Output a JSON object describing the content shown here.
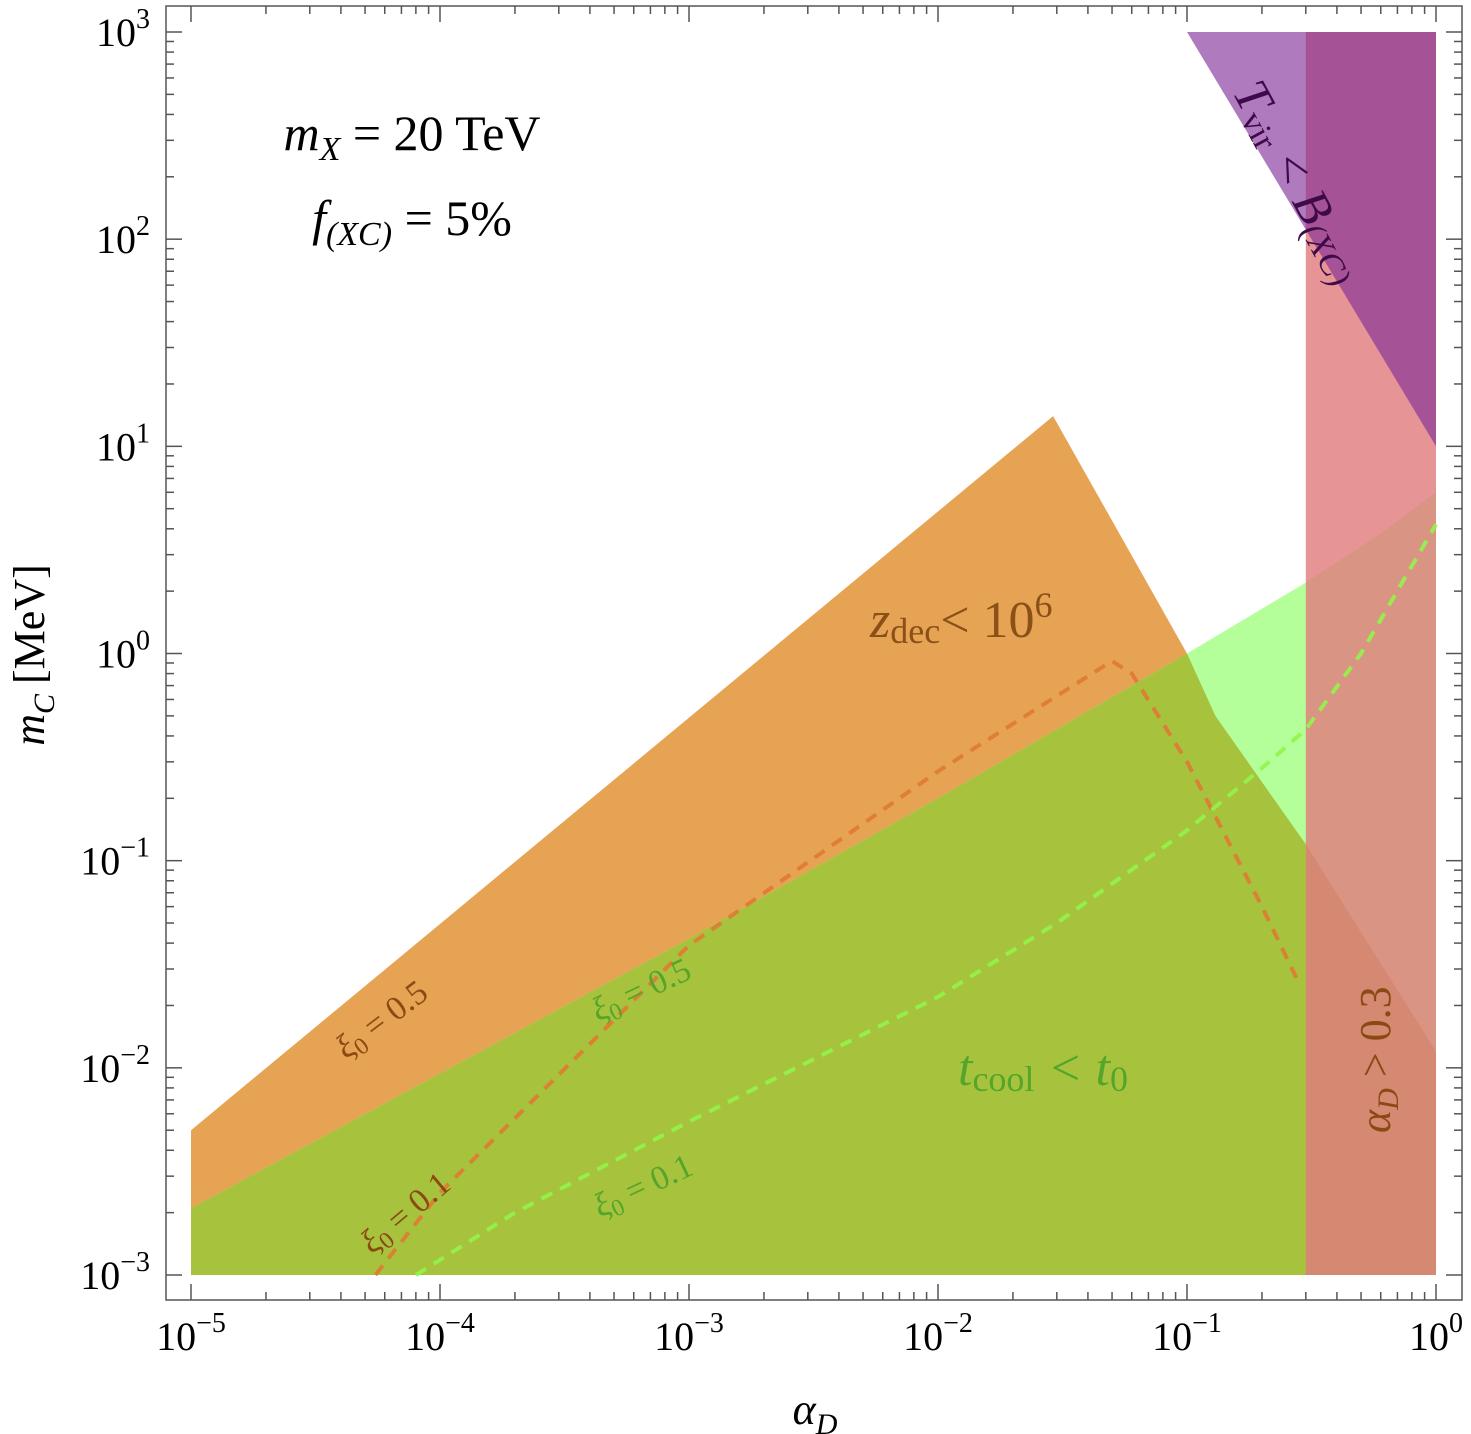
{
  "chart_data": {
    "type": "area",
    "title": "",
    "xlabel": {
      "base": "α",
      "sub": "D"
    },
    "ylabel": {
      "base": "m",
      "sub": "C",
      "unit": "[MeV]"
    },
    "x_scale": "log",
    "y_scale": "log",
    "xlim": [
      1e-05,
      1
    ],
    "ylim": [
      0.001,
      1000
    ],
    "grid": false,
    "x_ticks": [
      {
        "value": 1e-05,
        "base": "10",
        "exp": "−5"
      },
      {
        "value": 0.0001,
        "base": "10",
        "exp": "−4"
      },
      {
        "value": 0.001,
        "base": "10",
        "exp": "−3"
      },
      {
        "value": 0.01,
        "base": "10",
        "exp": "−2"
      },
      {
        "value": 0.1,
        "base": "10",
        "exp": "−1"
      },
      {
        "value": 1,
        "base": "10",
        "exp": "0"
      }
    ],
    "y_ticks": [
      {
        "value": 0.001,
        "base": "10",
        "exp": "−3"
      },
      {
        "value": 0.01,
        "base": "10",
        "exp": "−2"
      },
      {
        "value": 0.1,
        "base": "10",
        "exp": "−1"
      },
      {
        "value": 1,
        "base": "10",
        "exp": "0"
      },
      {
        "value": 10,
        "base": "10",
        "exp": "1"
      },
      {
        "value": 100,
        "base": "10",
        "exp": "2"
      },
      {
        "value": 1000,
        "base": "10",
        "exp": "3"
      }
    ],
    "params": [
      {
        "pre": "m",
        "sub": "X",
        "post": " = 20 TeV"
      },
      {
        "pre": "f",
        "sub": "(XC)",
        "post": " = 5%"
      }
    ],
    "regions": [
      {
        "name": "z_dec < 10^6",
        "color": "#E6A354",
        "points": [
          [
            1e-05,
            0.001
          ],
          [
            1e-05,
            0.005
          ],
          [
            0.029,
            14
          ],
          [
            0.1,
            1.0
          ],
          [
            0.13,
            0.5
          ],
          [
            0.3,
            0.12
          ],
          [
            1,
            0.012
          ],
          [
            1,
            0.001
          ]
        ]
      },
      {
        "name": "t_cool < t_0",
        "color": "#B4FF9A",
        "points": [
          [
            1e-05,
            0.001
          ],
          [
            1e-05,
            0.0021
          ],
          [
            0.001,
            0.042
          ],
          [
            0.01,
            0.2
          ],
          [
            0.1,
            1.0
          ],
          [
            0.3,
            2.2
          ],
          [
            0.6,
            3.8
          ],
          [
            1,
            6
          ],
          [
            1,
            0.001
          ]
        ]
      },
      {
        "name": "overlap",
        "color": "#A7C33E",
        "points": [
          [
            1e-05,
            0.001
          ],
          [
            1e-05,
            0.0021
          ],
          [
            0.001,
            0.042
          ],
          [
            0.01,
            0.2
          ],
          [
            0.1,
            1.0
          ],
          [
            0.13,
            0.5
          ],
          [
            0.3,
            0.12
          ],
          [
            1,
            0.012
          ],
          [
            1,
            0.001
          ]
        ]
      },
      {
        "name": "alpha_D > 0.3",
        "color": "#E07C7E",
        "opacity": 0.82,
        "points": [
          [
            0.3,
            0.001
          ],
          [
            0.3,
            1000
          ],
          [
            1,
            1000
          ],
          [
            1,
            0.001
          ]
        ]
      },
      {
        "name": "T_vir < B_(XC)",
        "color": "#7E2A96",
        "opacity": 0.62,
        "points": [
          [
            0.1,
            1000
          ],
          [
            1,
            1000
          ],
          [
            1,
            10
          ]
        ]
      }
    ],
    "series": [
      {
        "name": "ξ0 = 0.5",
        "style": "dashed",
        "color": "#E07A33",
        "points": [
          [
            5.5e-05,
            0.001
          ],
          [
            0.0001,
            0.0025
          ],
          [
            0.001,
            0.039
          ],
          [
            0.01,
            0.27
          ],
          [
            0.05,
            0.92
          ],
          [
            0.06,
            0.8
          ],
          [
            0.1,
            0.3
          ],
          [
            0.2,
            0.06
          ],
          [
            0.28,
            0.026
          ]
        ]
      },
      {
        "name": "ξ0 = 0.1",
        "style": "dashed",
        "color": "#92F44A",
        "points": [
          [
            8e-05,
            0.001
          ],
          [
            0.0002,
            0.002
          ],
          [
            0.001,
            0.0055
          ],
          [
            0.01,
            0.022
          ],
          [
            0.03,
            0.05
          ],
          [
            0.1,
            0.14
          ],
          [
            0.2,
            0.28
          ],
          [
            0.3,
            0.43
          ],
          [
            0.5,
            1.0
          ],
          [
            1,
            4.2
          ]
        ]
      }
    ],
    "labels": {
      "zdec": {
        "base": "z",
        "sub": "dec",
        "rel": "< 10",
        "sup": "6",
        "color": "#8A5018"
      },
      "tcool": {
        "pre": "t",
        "presub": "cool",
        "rel": " < t",
        "postsub": "0",
        "color": "#55A52B"
      },
      "alphaD": {
        "base": "α",
        "sub": "D",
        "rest": " > 0.3",
        "color": "#8A4A14"
      },
      "tvir": {
        "base": "T",
        "sub": "vir",
        "rel": " < B",
        "sub2": "(XC)",
        "color": "#3E0A4A"
      },
      "xi05_orange": {
        "base": "ξ",
        "sub": "0",
        "rest": " = 0.5",
        "color": "#8A4A14"
      },
      "xi01_orange": {
        "base": "ξ",
        "sub": "0",
        "rest": " = 0.1",
        "color": "#8A4A14"
      },
      "xi05_green": {
        "base": "ξ",
        "sub": "0",
        "rest": " = 0.5",
        "color": "#55A52B"
      },
      "xi01_green": {
        "base": "ξ",
        "sub": "0",
        "rest": " = 0.1",
        "color": "#55A52B"
      }
    }
  }
}
